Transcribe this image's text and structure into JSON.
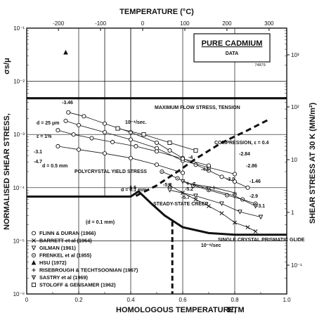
{
  "chart_data": {
    "type": "scatter",
    "title": "PURE CADMIUM",
    "subtitle": "DATA",
    "ref_code": "74879",
    "x_axis": {
      "label": "HOMOLOGOUS TEMPERATURE,",
      "label_symbol": "T/TM",
      "range": [
        0,
        1.0
      ],
      "ticks": [
        "0",
        "0.2",
        "0.4",
        "0.6",
        "0.8",
        "1.0"
      ]
    },
    "top_axis": {
      "label": "TEMPERATURE (°C)",
      "ticks": [
        "-200",
        "-100",
        "0",
        "100",
        "200",
        "300"
      ],
      "tick_homologous": [
        0.122,
        0.284,
        0.446,
        0.608,
        0.77,
        0.932
      ]
    },
    "y_left": {
      "label": "NORMALISED SHEAR STRESS,",
      "label_symbol": "σs/μ",
      "scale": "log",
      "range": [
        1e-06,
        0.1
      ],
      "ticks": [
        "10⁻¹",
        "10⁻²",
        "10⁻³",
        "10⁻⁴",
        "10⁻⁵",
        "10⁻⁶"
      ]
    },
    "y_right": {
      "label": "SHEAR STRESS AT 30 K (MN/m²)",
      "scale": "log",
      "ticks": [
        "10³",
        "10²",
        "10",
        "1",
        "10⁻¹"
      ]
    },
    "grid": true,
    "legend_position": "bottom-left",
    "legend": [
      {
        "marker": "o",
        "label": "FLINN & DURAN (1966)"
      },
      {
        "marker": "x",
        "label": "BARRETT et al (1964)"
      },
      {
        "marker": "v",
        "label": "GILMAN (1961)"
      },
      {
        "marker": "o-dot",
        "label": "FRENKEL et al (1955)"
      },
      {
        "marker": "^",
        "label": "HSU (1972)"
      },
      {
        "marker": "+",
        "label": "RISEBROUGH & TECHTSOONIAN (1967)"
      },
      {
        "marker": "v-dot",
        "label": "SASTRY et al (1969)"
      },
      {
        "marker": "s",
        "label": "STOLOFF & GENSAMER (1962)"
      }
    ],
    "annotations": [
      "MAXIMUM FLOW STRESS, TENSION",
      "COMPRESSION, ε = 0.4",
      "POLYCRYSTAL YIELD STRESS",
      "STEADY-STATE CREEP",
      "SINGLE CRYSTAL PRISMATIC GLIDE",
      "d = 25 μm",
      "ε = 1%",
      "d = 0.5 mm",
      "d = 0.1 mm",
      "(d = 0.1 mm)",
      "10⁻⁴/sec.",
      "10⁻⁸/sec",
      "-3.46",
      "-3.1",
      "-4.7",
      "-2.84",
      "-2.86",
      "-4",
      "-4.6",
      "-5.2",
      "-5.5",
      "-6.5",
      "-5.7",
      "-7",
      "-3.0",
      "-1.46",
      "-2.9",
      "-3.1"
    ],
    "boundaries": {
      "upper_plateau": [
        [
          0,
          0.0048
        ],
        [
          1.0,
          0.0048
        ]
      ],
      "lower_plateau": [
        [
          0,
          6.8e-05
        ],
        [
          0.4,
          6.8e-05
        ],
        [
          0.43,
          8.5e-05
        ],
        [
          0.48,
          5e-05
        ],
        [
          0.53,
          3e-05
        ],
        [
          0.6,
          1.8e-05
        ],
        [
          0.7,
          1.4e-05
        ],
        [
          0.8,
          1.3e-05
        ],
        [
          1.0,
          1.3e-05
        ]
      ],
      "vertical_dashed": [
        [
          0.56,
          2.3e-05
        ],
        [
          0.56,
          1e-06
        ]
      ],
      "dashed_creep_rise": [
        [
          0.42,
          7e-05
        ],
        [
          0.5,
          0.00011
        ],
        [
          0.58,
          0.0002
        ],
        [
          0.65,
          0.00035
        ],
        [
          0.75,
          0.0007
        ],
        [
          0.85,
          0.0012
        ],
        [
          0.93,
          0.0019
        ]
      ],
      "thin_bounds": [
        [
          [
            0.4,
            0.1
          ],
          [
            0.4,
            6.8e-05
          ]
        ],
        [
          [
            0.3,
            0.1
          ],
          [
            0.3,
            6.8e-05
          ]
        ]
      ]
    },
    "series": [
      {
        "marker": "o",
        "points": [
          [
            0.16,
            0.0026
          ],
          [
            0.22,
            0.0022
          ],
          [
            0.3,
            0.0016
          ],
          [
            0.4,
            0.0011
          ],
          [
            0.5,
            0.0007
          ],
          [
            0.55,
            0.0005
          ],
          [
            0.6,
            0.00036
          ],
          [
            0.65,
            0.00027
          ],
          [
            0.7,
            0.00021
          ],
          [
            0.75,
            0.00016
          ],
          [
            0.8,
            0.00013
          ],
          [
            0.85,
            0.0001
          ]
        ]
      },
      {
        "marker": "o",
        "points": [
          [
            0.15,
            0.0018
          ],
          [
            0.2,
            0.0015
          ],
          [
            0.3,
            0.0011
          ],
          [
            0.4,
            0.0008
          ],
          [
            0.5,
            0.00055
          ],
          [
            0.6,
            0.00032
          ],
          [
            0.7,
            0.00024
          ],
          [
            0.8,
            0.00018
          ]
        ]
      },
      {
        "marker": "o",
        "points": [
          [
            0.12,
            0.0012
          ],
          [
            0.18,
            0.001
          ],
          [
            0.25,
            0.00085
          ],
          [
            0.33,
            0.00072
          ],
          [
            0.42,
            0.0006
          ],
          [
            0.5,
            0.00048
          ],
          [
            0.6,
            0.00035
          ],
          [
            0.7,
            0.00026
          ]
        ]
      },
      {
        "marker": "o",
        "points": [
          [
            0.12,
            0.0006
          ],
          [
            0.2,
            0.00052
          ],
          [
            0.3,
            0.00044
          ],
          [
            0.4,
            0.00036
          ],
          [
            0.5,
            0.00027
          ],
          [
            0.6,
            0.00019
          ]
        ]
      },
      {
        "marker": "x",
        "points": [
          [
            0.55,
            0.00011
          ],
          [
            0.6,
            8e-05
          ],
          [
            0.65,
            6e-05
          ],
          [
            0.7,
            4.5e-05
          ],
          [
            0.75,
            3.3e-05
          ],
          [
            0.8,
            2.2e-05
          ],
          [
            0.85,
            1.8e-05
          ],
          [
            0.88,
            1.5e-05
          ]
        ]
      },
      {
        "marker": "o-dot",
        "points": [
          [
            0.52,
            0.0002
          ],
          [
            0.58,
            0.00015
          ],
          [
            0.64,
            0.00011
          ],
          [
            0.7,
            9e-05
          ],
          [
            0.77,
            7.2e-05
          ],
          [
            0.83,
            6e-05
          ],
          [
            0.88,
            5e-05
          ]
        ]
      },
      {
        "marker": "^",
        "points": [
          [
            0.15,
            0.035
          ]
        ]
      },
      {
        "marker": "v",
        "points": [
          [
            0.55,
            9e-05
          ],
          [
            0.65,
            7e-05
          ],
          [
            0.75,
            5e-05
          ],
          [
            0.82,
            3.5e-05
          ],
          [
            0.9,
            2.8e-05
          ]
        ]
      },
      {
        "marker": "v-dot",
        "points": [
          [
            0.6,
            0.00013
          ],
          [
            0.7,
            9.5e-05
          ],
          [
            0.8,
            7e-05
          ],
          [
            0.88,
            4.5e-05
          ]
        ]
      },
      {
        "marker": "+",
        "points": [
          [
            0.62,
            0.00012
          ],
          [
            0.72,
            0.0001
          ],
          [
            0.8,
            8e-05
          ]
        ]
      },
      {
        "marker": "s",
        "points": [
          [
            0.35,
            0.0013
          ],
          [
            0.45,
            0.001
          ],
          [
            0.55,
            0.0007
          ],
          [
            0.65,
            0.0005
          ]
        ]
      }
    ]
  }
}
